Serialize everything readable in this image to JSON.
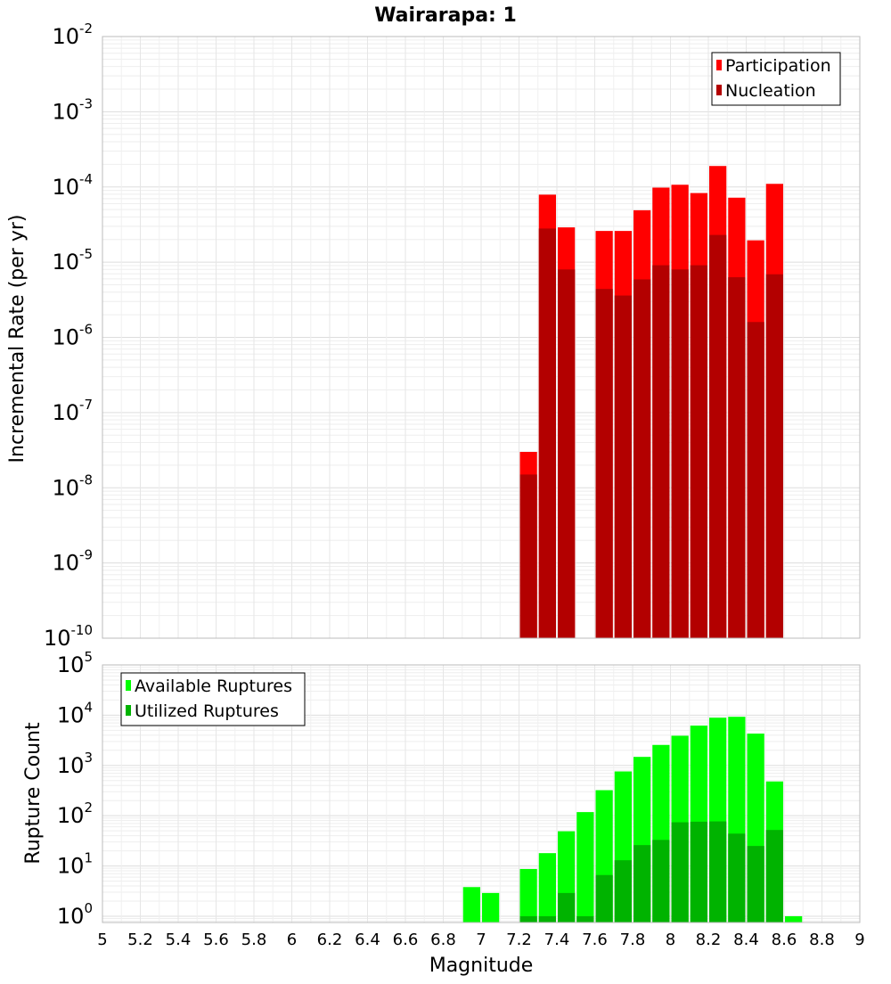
{
  "chart_data": [
    {
      "type": "bar",
      "title": "Wairarapa: 1",
      "xlabel": "",
      "ylabel": "Incremental Rate (per yr)",
      "y_scale": "log",
      "ylim": [
        1e-10,
        0.01
      ],
      "xlim": [
        5,
        9
      ],
      "legend_position": "top-right",
      "grid": true,
      "bin_width": 0.1,
      "y_ticks": [
        {
          "base": "10",
          "exp": "-10"
        },
        {
          "base": "10",
          "exp": "-9"
        },
        {
          "base": "10",
          "exp": "-8"
        },
        {
          "base": "10",
          "exp": "-7"
        },
        {
          "base": "10",
          "exp": "-6"
        },
        {
          "base": "10",
          "exp": "-5"
        },
        {
          "base": "10",
          "exp": "-4"
        },
        {
          "base": "10",
          "exp": "-3"
        },
        {
          "base": "10",
          "exp": "-2"
        }
      ],
      "series": [
        {
          "name": "Participation",
          "color": "#ff0000",
          "x": [
            7.25,
            7.35,
            7.45,
            7.65,
            7.75,
            7.85,
            7.95,
            8.05,
            8.15,
            8.25,
            8.35,
            8.45,
            8.55
          ],
          "values": [
            3e-08,
            7.9e-05,
            2.9e-05,
            2.6e-05,
            2.6e-05,
            4.9e-05,
            9.8e-05,
            0.000107,
            8.3e-05,
            0.00019,
            7.2e-05,
            1.95e-05,
            0.00011
          ]
        },
        {
          "name": "Nucleation",
          "color": "#b30000",
          "x": [
            7.25,
            7.35,
            7.45,
            7.65,
            7.75,
            7.85,
            7.95,
            8.05,
            8.15,
            8.25,
            8.35,
            8.45,
            8.55
          ],
          "values": [
            1.5e-08,
            2.8e-05,
            8e-06,
            4.4e-06,
            3.6e-06,
            5.9e-06,
            9.1e-06,
            8e-06,
            9.1e-06,
            2.3e-05,
            6.3e-06,
            1.6e-06,
            6.9e-06
          ]
        }
      ]
    },
    {
      "type": "bar",
      "title": "",
      "xlabel": "Magnitude",
      "ylabel": "Rupture Count",
      "y_scale": "log",
      "ylim": [
        0.75,
        100000.0
      ],
      "xlim": [
        5,
        9
      ],
      "legend_position": "top-left",
      "grid": true,
      "bin_width": 0.1,
      "y_ticks": [
        {
          "base": "10",
          "exp": "0"
        },
        {
          "base": "10",
          "exp": "1"
        },
        {
          "base": "10",
          "exp": "2"
        },
        {
          "base": "10",
          "exp": "3"
        },
        {
          "base": "10",
          "exp": "4"
        },
        {
          "base": "10",
          "exp": "5"
        }
      ],
      "x_ticks": [
        "5",
        "5.2",
        "5.4",
        "5.6",
        "5.8",
        "6",
        "6.2",
        "6.4",
        "6.6",
        "6.8",
        "7",
        "7.2",
        "7.4",
        "7.6",
        "7.8",
        "8",
        "8.2",
        "8.4",
        "8.6",
        "8.8",
        "9"
      ],
      "series": [
        {
          "name": "Available Ruptures",
          "color": "#00ff00",
          "x": [
            6.95,
            7.05,
            7.25,
            7.35,
            7.45,
            7.55,
            7.65,
            7.75,
            7.85,
            7.95,
            8.05,
            8.15,
            8.25,
            8.35,
            8.45,
            8.55,
            8.65
          ],
          "values": [
            3.8,
            2.9,
            8.7,
            18,
            49,
            118,
            322,
            760,
            1480,
            2560,
            3900,
            6200,
            8900,
            9300,
            4300,
            480,
            1
          ]
        },
        {
          "name": "Utilized Ruptures",
          "color": "#00b300",
          "x": [
            7.25,
            7.35,
            7.45,
            7.55,
            7.65,
            7.75,
            7.85,
            7.95,
            8.05,
            8.15,
            8.25,
            8.35,
            8.45,
            8.55
          ],
          "values": [
            1,
            1,
            2.9,
            1,
            6.6,
            13,
            26,
            33,
            74,
            76,
            77,
            44,
            25,
            52
          ]
        }
      ]
    }
  ]
}
